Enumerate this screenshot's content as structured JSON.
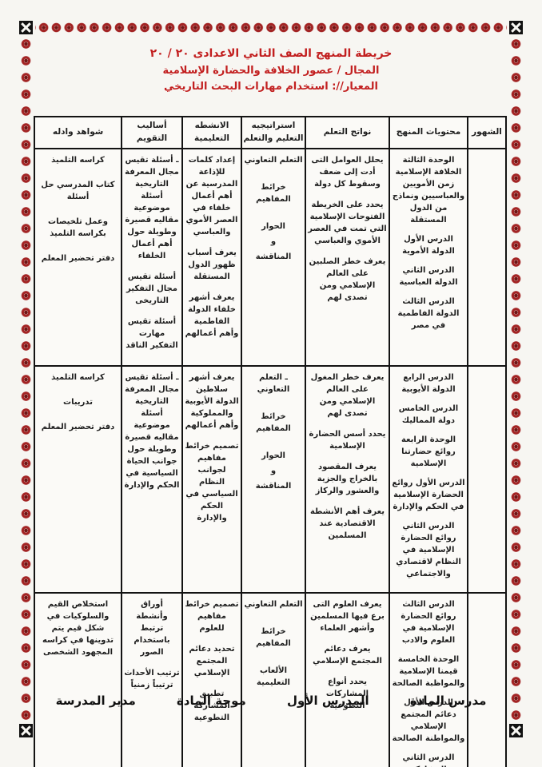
{
  "border": {
    "ornament": "rosette-flower-pattern",
    "ornament_color": "#a32424",
    "corner": "black-square-white-cross"
  },
  "title": {
    "line1": "خريطة المنهج   الصف الثاني الاعدادى      ٢٠ /   ٢٠",
    "line2": "المجال / عصور الخلافة  والحضارة الإسلامية",
    "line3": "المعيار//: استخدام مهارات البحث التاريخي"
  },
  "colors": {
    "accent_red": "#c21f1f",
    "accent_green": "#2e8b3c",
    "text_black": "#1d1d1d"
  },
  "table": {
    "headers": [
      {
        "label": "الشهور"
      },
      {
        "label": "محتويات المنهج"
      },
      {
        "label": "نواتج التعلم"
      },
      {
        "label": "استراتيجيه التعليم والتعلم"
      },
      {
        "label": "الانشطه التعليمية"
      },
      {
        "label": "أساليب التقويم"
      },
      {
        "label": "شواهد وادله"
      }
    ],
    "rows": [
      {
        "months": "",
        "contents": [
          "الوحدة الثالثة الخلافة الإسلامية زمن الأمويين والعباسيين ونماذج من الدول المستقلة",
          "الدرس الأول الدولة الأموية",
          "الدرس الثاني الدولة العباسية",
          "الدرس الثالث الدولة الفاطمية في مصر"
        ],
        "outcomes": [
          "يحلل العوامل التى أدت إلى ضعف وسقوط كل دولة",
          "يحدد على الخريطة الفتوحات الإسلامية التي تمت في العصر الأموي والعباسي",
          "يعرف خطر الصلبين على العالم الإسلامي ومن تصدى لهم"
        ],
        "strategies": [
          "التعلم التعاوني",
          "خرائط المفاهيم",
          "الحوار",
          "و",
          "المناقشة"
        ],
        "activities": [
          "إعداد كلمات للإذاعة المدرسية عن أهم أعمال خلفاء في العصر الأموي والعباسي",
          "يعرف أسباب ظهور الدول المستقلة",
          "يعرف أشهر خلفاء الدولة الفاطمية وأهم أعمالهم"
        ],
        "evaluation": [
          "ـ أسئلة تقيس مجال المعرفة التاريخية أسئلة موضوعية مقاليه قصيرة وطويلة حول أهم أعمال الخلفاء",
          "أسئلة تقيس مجال التفكير التاريخى",
          "أسئلة تقيس مهارت التفكير الناقد"
        ],
        "evidence": [
          "كراسه التلميذ",
          "كتاب المدرسي حل أسئلة",
          "وعمل تلخيصات بكراسه التلميذ",
          "دفتر تحضير المعلم"
        ]
      },
      {
        "months": "",
        "contents": [
          "الدرس الرابع الدولة الأيوبية",
          "الدرس الخامس دولة المماليك",
          "الوحدة الرابعة روائع حضارتنا الإسلامية",
          "الدرس الأول روائع الحضارة الإسلامية في الحكم والإدارة",
          "الدرس الثاني روائع الحضارة الإسلامية في النظام لاقتصادي والاجتماعي"
        ],
        "outcomes": [
          "يعرف خطر المغول على العالم الإسلامي ومن تصدى لهم",
          "يحدد أسس الحضارة الإسلامية",
          "يعرف المقصود بالخراج والجزية والعشور والركاز",
          "يعرف أهم الأنشطة الاقتصادية عند المسلمين"
        ],
        "strategies": [
          "ـ التعلم التعاوني",
          "خرائط المفاهيم",
          "الحوار",
          "و",
          "المناقشة"
        ],
        "activities": [
          "يعرف أشهر سلاطين الدولة الأيوبية والمملوكية وأهم أعمالهم",
          "تصميم خرائط مفاهيم لجوانب النظام السياسي في الحكم والإدارة"
        ],
        "evaluation": [
          "ـ أسئلة تقيس مجال المعرفة التاريخية أسئلة موضوعية مقاليه قصيرة وطويلة حول جوانب الحياة السياسية في الحكم والإدارة"
        ],
        "evidence": [
          "كراسه التلميذ",
          "تدريبات",
          "دفتر تحضير المعلم"
        ]
      },
      {
        "months": "",
        "contents": [
          "الدرس الثالث روائع الحضارة الإسلامية في العلوم والادب",
          "الوحدة الخامسة قيمنا الإسلامية والمواظبة الصالحة",
          "الدرس الأول دعائم المجتمع الإسلامي والمواطنة الصالحة",
          "الدرس الثاني المشاركة التطوعية"
        ],
        "outcomes": [
          "يعرف العلوم التى برع فيها المسلمين وأشهر العلماء",
          "يعرف دعائم المجتمع الإسلامي",
          "يحدد أنواع المشاركات التطوعية"
        ],
        "strategies": [
          "التعلم التعاوني",
          "خرائط المفاهيم",
          "الألعاب التعليمية"
        ],
        "activities": [
          "تصميم خرائط مفاهيم للعلوم",
          "تحديد دعائم المجتمع الإسلامي",
          "تطبيق المشاركة التطوعية"
        ],
        "evaluation": [
          "أوراق وأنشطة ترتبط باستخدام الصور",
          "ترتيب الأحداث ترتيباً زمنياً"
        ],
        "evidence": [
          "استخلاص القيم والسلوكيات في شكل قيم يتم تدوينها في كراسه المجهود الشخصى"
        ]
      }
    ]
  },
  "footer": {
    "signatures": [
      "مدرس المادة",
      "المدرس الأول",
      "موجة المادة",
      "مدير المدرسة"
    ]
  }
}
